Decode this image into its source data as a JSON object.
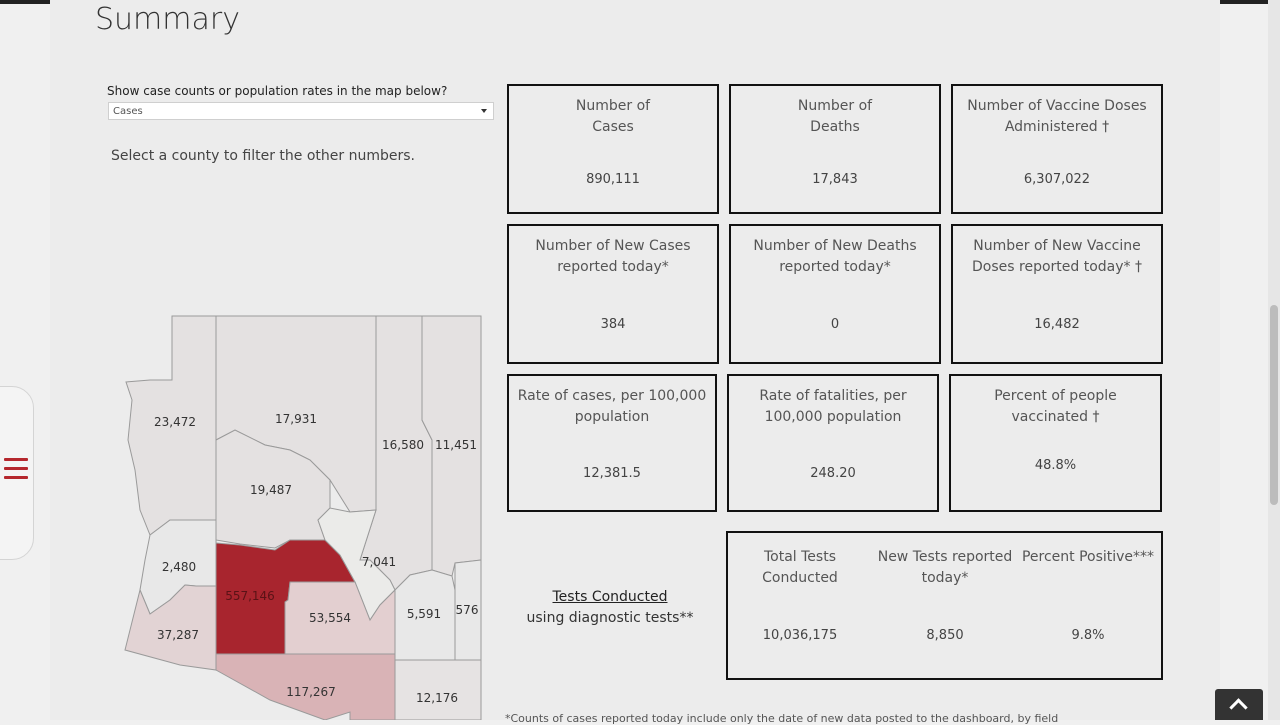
{
  "header": {
    "title": "Summary"
  },
  "filter": {
    "label": "Show case counts or population rates in the map below?",
    "selected": "Cases"
  },
  "instruction": "Select a county to filter the other numbers.",
  "cards": [
    {
      "label": "Number of Cases",
      "value": "890,111"
    },
    {
      "label": "Number of Deaths",
      "value": "17,843"
    },
    {
      "label": "Number of Vaccine Doses Administered †",
      "value": "6,307,022"
    },
    {
      "label": "Number of New Cases reported today*",
      "value": "384"
    },
    {
      "label": "Number of New Deaths reported today*",
      "value": "0"
    },
    {
      "label": "Number of New Vaccine Doses reported today* †",
      "value": "16,482"
    },
    {
      "label": "Rate of cases, per 100,000 population",
      "value": "12,381.5"
    },
    {
      "label": "Rate of fatalities, per 100,000 population",
      "value": "248.20"
    },
    {
      "label": "Percent of people vaccinated †",
      "value": "48.8%"
    }
  ],
  "tests": {
    "title": "Tests Conducted",
    "subtitle": "using diagnostic tests**",
    "columns": [
      {
        "label": "Total Tests Conducted",
        "value": "10,036,175"
      },
      {
        "label": "New Tests reported today*",
        "value": "8,850"
      },
      {
        "label": "Percent Positive***",
        "value": "9.8%"
      }
    ]
  },
  "map": {
    "counties": [
      {
        "name": "mohave",
        "value": "23,472",
        "fill": "#e4e1e1"
      },
      {
        "name": "coconino",
        "value": "17,931",
        "fill": "#e4e1e1"
      },
      {
        "name": "navajo",
        "value": "16,580",
        "fill": "#e4e1e1"
      },
      {
        "name": "apache",
        "value": "11,451",
        "fill": "#e4e1e1"
      },
      {
        "name": "yavapai",
        "value": "19,487",
        "fill": "#e4e1e1"
      },
      {
        "name": "la-paz",
        "value": "2,480",
        "fill": "#e8e8e8"
      },
      {
        "name": "maricopa",
        "value": "557,146",
        "fill": "#a8252e"
      },
      {
        "name": "gila",
        "value": "7,041",
        "fill": "#ebebe9"
      },
      {
        "name": "pinal",
        "value": "53,554",
        "fill": "#e3cfd0"
      },
      {
        "name": "graham",
        "value": "5,591",
        "fill": "#e8e8e8"
      },
      {
        "name": "greenlee",
        "value": "576",
        "fill": "#e8e8e8"
      },
      {
        "name": "yuma",
        "value": "37,287",
        "fill": "#e2d3d4"
      },
      {
        "name": "pima",
        "value": "117,267",
        "fill": "#d9b3b6"
      },
      {
        "name": "cochise",
        "value": "12,176",
        "fill": "#e6e3e3"
      }
    ]
  },
  "footnote": "*Counts of cases reported today include only the date of new data posted to the dashboard, by field"
}
